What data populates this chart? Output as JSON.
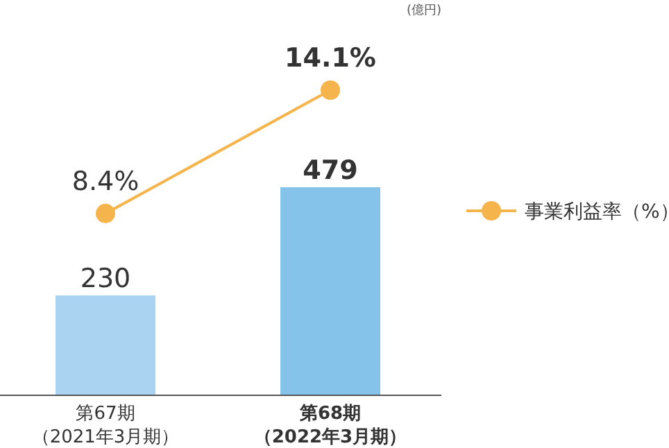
{
  "chart_data": {
    "type": "bar",
    "categories": [
      "第67期（2021年3月期）",
      "第68期（2022年3月期）"
    ],
    "series": [
      {
        "colors": [
          "#a9d3f0",
          "#86c3ea"
        ],
        "values": [
          230,
          479
        ],
        "value_labels": [
          "230",
          "479"
        ]
      },
      {
        "type": "line",
        "name": "事業利益率（%）",
        "axis": "y2",
        "color": "#f5b54c",
        "marker": "circle",
        "values": [
          8.4,
          14.1
        ],
        "value_labels": [
          "8.4%",
          "14.1%"
        ]
      }
    ],
    "annotations": [
      "(億円)"
    ],
    "legend": "right"
  }
}
